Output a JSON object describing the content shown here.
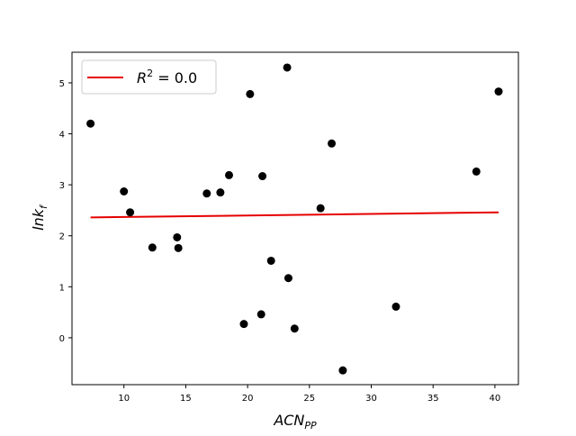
{
  "chart_data": {
    "type": "scatter",
    "title": "",
    "xlabel": "ACN",
    "xlabel_sub": "PP",
    "ylabel": "lnk",
    "ylabel_sub": "f",
    "xlim": [
      5.8,
      41.9
    ],
    "ylim": [
      -0.92,
      5.6
    ],
    "x_ticks": [
      10,
      15,
      20,
      25,
      30,
      35,
      40
    ],
    "y_ticks": [
      0,
      1,
      2,
      3,
      4,
      5
    ],
    "grid": false,
    "legend_position": "top-left",
    "points": {
      "color": "#000000",
      "x": [
        7.3,
        10.0,
        10.5,
        12.3,
        14.3,
        14.4,
        16.7,
        17.8,
        18.5,
        19.7,
        20.2,
        21.1,
        21.2,
        21.9,
        23.2,
        23.3,
        23.8,
        25.9,
        26.8,
        27.7,
        32.0,
        38.5,
        40.3
      ],
      "y": [
        4.2,
        2.87,
        2.46,
        1.77,
        1.97,
        1.76,
        2.83,
        2.85,
        3.19,
        0.27,
        4.78,
        0.46,
        3.17,
        1.51,
        5.3,
        1.17,
        0.18,
        2.54,
        3.81,
        -0.64,
        0.61,
        3.26,
        4.83
      ]
    },
    "fit_line": {
      "color": "#e60000",
      "x": [
        7.3,
        40.3
      ],
      "y": [
        2.36,
        2.46
      ]
    },
    "legend": {
      "label": "R",
      "label_sup": "2",
      "label_value": " = 0.0",
      "color": "#e60000"
    }
  }
}
